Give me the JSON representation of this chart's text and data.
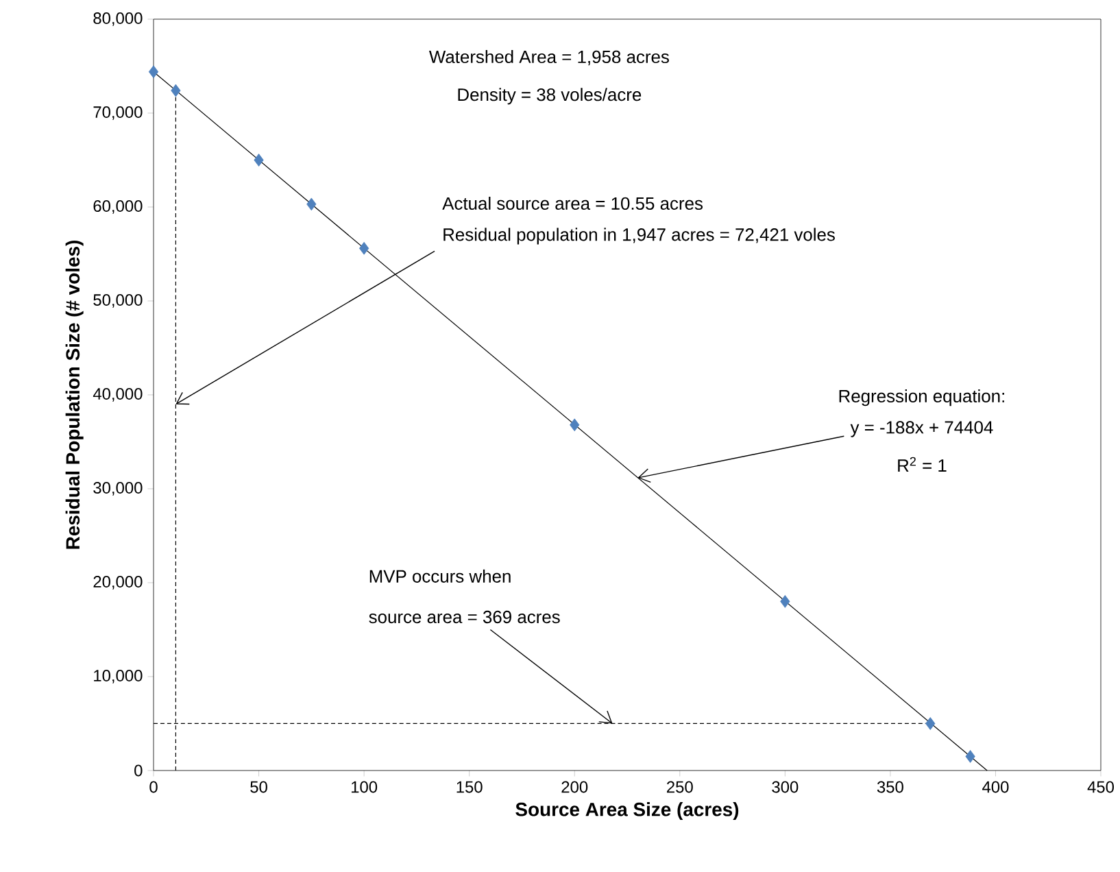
{
  "chart_data": {
    "type": "scatter",
    "xlabel": "Source Area Size (acres)",
    "ylabel": "Residual Population Size (# voles)",
    "xlim": [
      0,
      450
    ],
    "xticks": [
      0,
      50,
      100,
      150,
      200,
      250,
      300,
      350,
      400,
      450
    ],
    "ylim": [
      0,
      80000
    ],
    "yticks": [
      0,
      {
        "value": 10000,
        "label": "10,000"
      },
      {
        "value": 20000,
        "label": "20,000"
      },
      {
        "value": 30000,
        "label": "30,000"
      },
      {
        "value": 40000,
        "label": "40,000"
      },
      {
        "value": 50000,
        "label": "50,000"
      },
      {
        "value": 60000,
        "label": "60,000"
      },
      {
        "value": 70000,
        "label": "70,000"
      },
      {
        "value": 80000,
        "label": "80,000"
      }
    ],
    "series": [
      {
        "type": "line",
        "marker": "none",
        "color": "#000000",
        "x": [
          0,
          396
        ],
        "values": [
          74400,
          0
        ]
      },
      {
        "type": "line",
        "marker": "none",
        "color": "#000000",
        "line_style": "dashed",
        "x": [
          10.55,
          10.55
        ],
        "values": [
          0,
          72400
        ]
      },
      {
        "type": "line",
        "marker": "none",
        "color": "#000000",
        "line_style": "dashed",
        "x": [
          0,
          369
        ],
        "values": [
          5000,
          5000
        ]
      },
      {
        "marker": "diamond",
        "color": "#4f81bd",
        "x": [
          0,
          10.55,
          50,
          75,
          100,
          200,
          300,
          369,
          388
        ],
        "values": [
          74400,
          72400,
          65000,
          60300,
          55600,
          36800,
          18000,
          5000,
          1500
        ]
      }
    ],
    "annotations": [
      "Watershed Area = 1,958 acres",
      "Density = 38 voles/acre",
      "Actual source area = 10.55 acres",
      {
        "text": "Residual population in 1,947 acres = 72,421 voles",
        "x": 10.55,
        "y": 39000
      },
      "Regression equation:",
      {
        "text": "y = -188x + 74404",
        "x": 230,
        "y": 31160
      },
      "R$^{2}$ = 1",
      "MVP occurs when",
      {
        "text": "source area = 369 acres",
        "x": 218,
        "y": 5000
      }
    ]
  }
}
